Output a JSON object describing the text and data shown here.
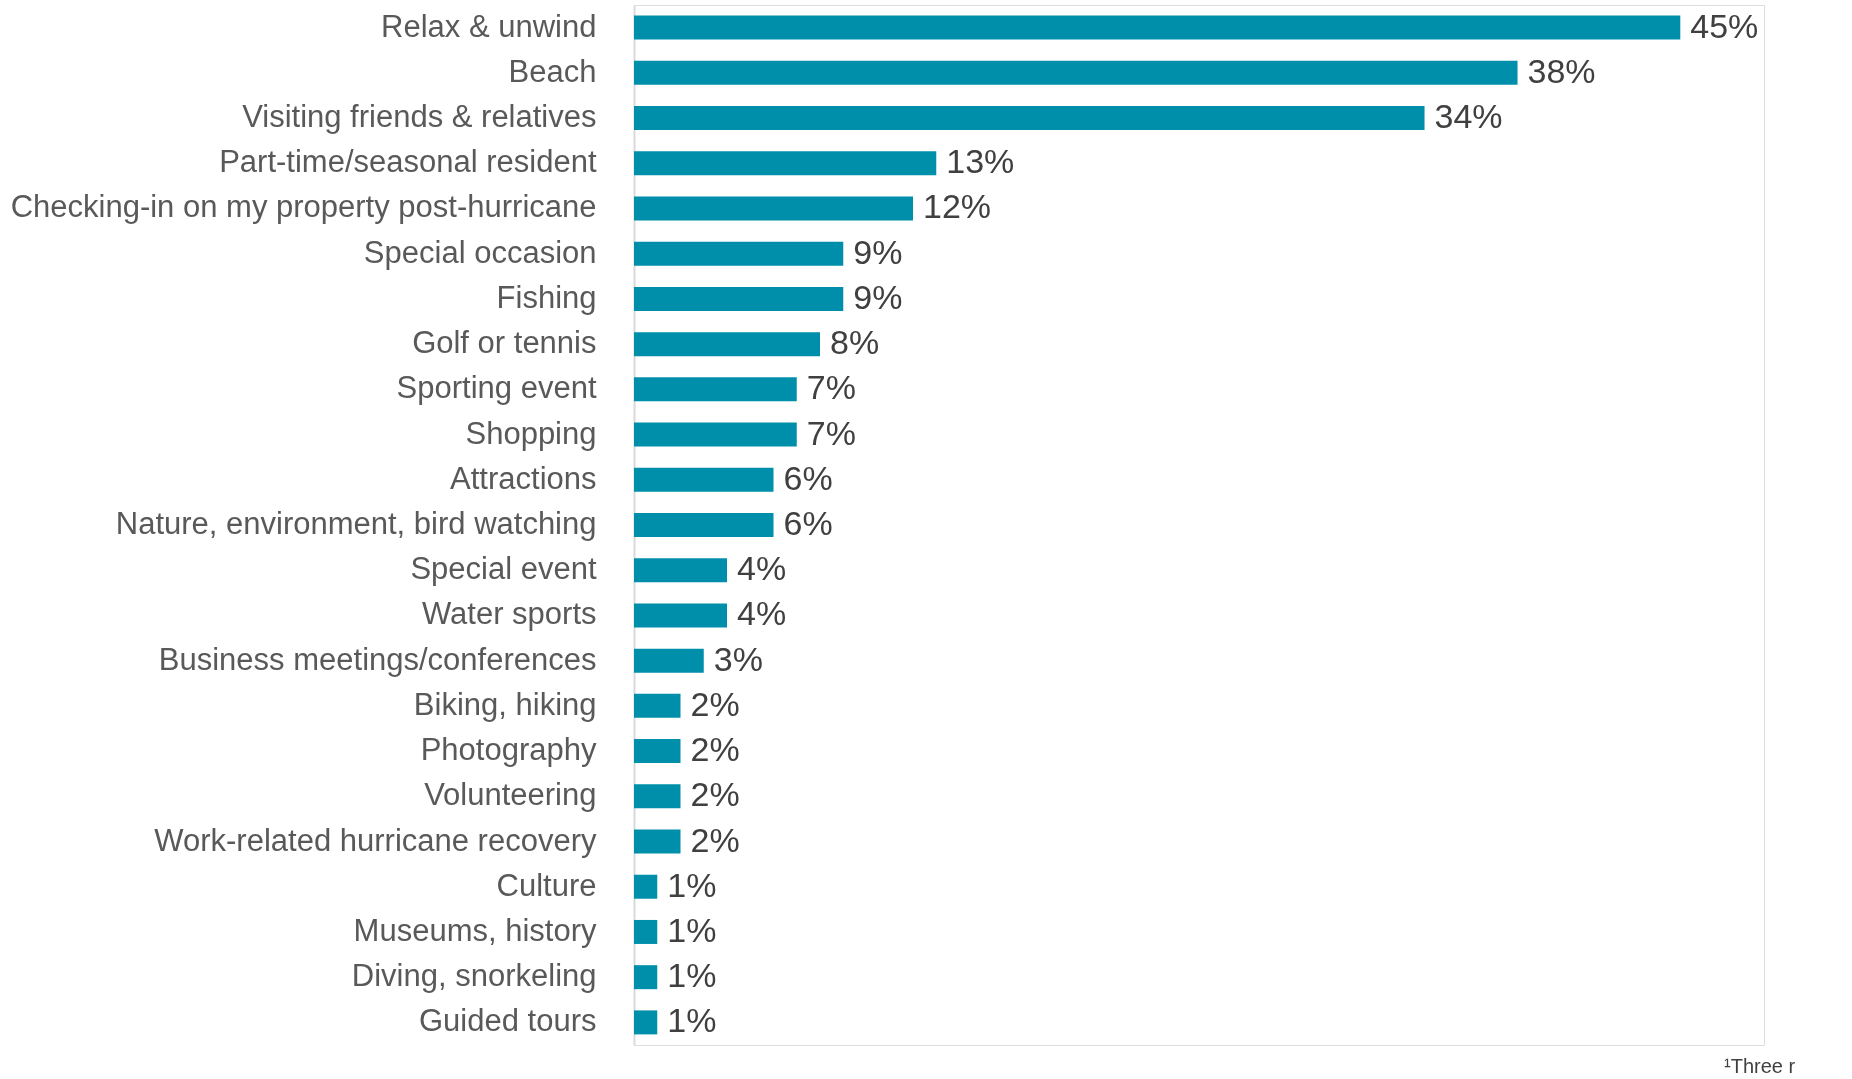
{
  "chart_data": {
    "type": "bar",
    "orientation": "horizontal",
    "categories": [
      "Relax & unwind",
      "Beach",
      "Visiting friends & relatives",
      "Part-time/seasonal resident",
      "Checking-in on my property post-hurricane",
      "Special occasion",
      "Fishing",
      "Golf or tennis",
      "Sporting event",
      "Shopping",
      "Attractions",
      "Nature, environment, bird watching",
      "Special event",
      "Water sports",
      "Business meetings/conferences",
      "Biking, hiking",
      "Photography",
      "Volunteering",
      "Work-related hurricane recovery",
      "Culture",
      "Museums, history",
      "Diving, snorkeling",
      "Guided tours"
    ],
    "values": [
      45,
      38,
      34,
      13,
      12,
      9,
      9,
      8,
      7,
      7,
      6,
      6,
      4,
      4,
      3,
      2,
      2,
      2,
      2,
      1,
      1,
      1,
      1
    ],
    "value_labels": [
      "45%",
      "38%",
      "34%",
      "13%",
      "12%",
      "9%",
      "9%",
      "8%",
      "7%",
      "7%",
      "6%",
      "6%",
      "4%",
      "4%",
      "3%",
      "2%",
      "2%",
      "2%",
      "2%",
      "1%",
      "1%",
      "1%",
      "1%"
    ],
    "color": "#008fab",
    "annotations": [
      "¹Three r"
    ],
    "grid": false
  }
}
